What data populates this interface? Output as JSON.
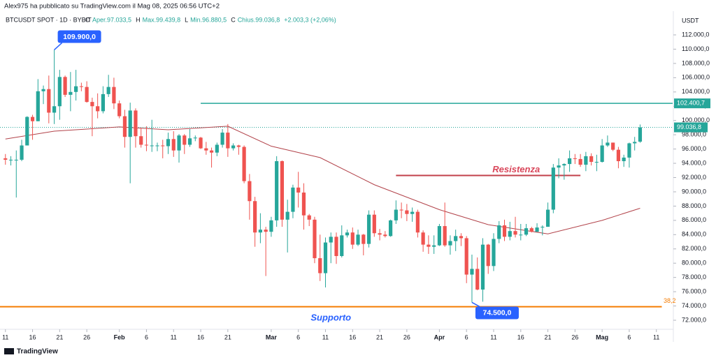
{
  "header": "Alex975 ha pubblicato su TradingView.com il Mag 08, 2025 06:56 UTC+2",
  "footer": "TradingView",
  "chart_data": {
    "type": "candlestick",
    "title": "BTCUSDT SPOT · 1D · BYBIT",
    "legend": [
      "O",
      "Aper.97.033,5",
      "H",
      "Max.99.439,8",
      "L",
      "Min.96.880,5",
      "C",
      "Chius.99.036,8",
      "+2.003,3 (+2,06%)"
    ],
    "y_axis_label": "USDT",
    "up_color": "#26a69a",
    "down_color": "#ef5350",
    "xlim": [
      "2025-01-10",
      "2025-05-14"
    ],
    "ylim": [
      68970,
      115130
    ],
    "yticks": [
      {
        "value": 72000,
        "label": "72.000,0"
      },
      {
        "value": 74000,
        "label": "74.000,0"
      },
      {
        "value": 76000,
        "label": "76.000,0"
      },
      {
        "value": 78000,
        "label": "78.000,0"
      },
      {
        "value": 80000,
        "label": "80.000,0"
      },
      {
        "value": 82000,
        "label": "82.000,0"
      },
      {
        "value": 84000,
        "label": "84.000,0"
      },
      {
        "value": 86000,
        "label": "86.000,0"
      },
      {
        "value": 88000,
        "label": "88.000,0"
      },
      {
        "value": 90000,
        "label": "90.000,0"
      },
      {
        "value": 92000,
        "label": "92.000,0"
      },
      {
        "value": 94000,
        "label": "94.000,0"
      },
      {
        "value": 96000,
        "label": "96.000,0"
      },
      {
        "value": 98000,
        "label": "98.000,0"
      },
      {
        "value": 100000,
        "label": "100.000,0"
      },
      {
        "value": 102000,
        "label": "102.000,0"
      },
      {
        "value": 104000,
        "label": "104.000,0"
      },
      {
        "value": 106000,
        "label": "106.000,0"
      },
      {
        "value": 108000,
        "label": "108.000,0"
      },
      {
        "value": 110000,
        "label": "110.000,0"
      },
      {
        "value": 112000,
        "label": "112.000,0"
      }
    ],
    "xticks": [
      {
        "value": "2025-01-11",
        "label": "11"
      },
      {
        "value": "2025-01-16",
        "label": "16"
      },
      {
        "value": "2025-01-21",
        "label": "21"
      },
      {
        "value": "2025-01-26",
        "label": "26"
      },
      {
        "value": "2025-02-01",
        "label": "Feb"
      },
      {
        "value": "2025-02-06",
        "label": "6"
      },
      {
        "value": "2025-02-11",
        "label": "11"
      },
      {
        "value": "2025-02-16",
        "label": "16"
      },
      {
        "value": "2025-02-21",
        "label": "21"
      },
      {
        "value": "2025-03-01",
        "label": "Mar"
      },
      {
        "value": "2025-03-06",
        "label": "6"
      },
      {
        "value": "2025-03-11",
        "label": "11"
      },
      {
        "value": "2025-03-16",
        "label": "16"
      },
      {
        "value": "2025-03-21",
        "label": "21"
      },
      {
        "value": "2025-03-26",
        "label": "26"
      },
      {
        "value": "2025-04-01",
        "label": "Apr"
      },
      {
        "value": "2025-04-06",
        "label": "6"
      },
      {
        "value": "2025-04-11",
        "label": "11"
      },
      {
        "value": "2025-04-16",
        "label": "16"
      },
      {
        "value": "2025-04-21",
        "label": "21"
      },
      {
        "value": "2025-04-26",
        "label": "26"
      },
      {
        "value": "2025-05-01",
        "label": "Mag"
      },
      {
        "value": "2025-05-06",
        "label": "6"
      },
      {
        "value": "2025-05-11",
        "label": "11"
      }
    ],
    "x": [
      "2025-01-11",
      "2025-01-12",
      "2025-01-13",
      "2025-01-14",
      "2025-01-15",
      "2025-01-16",
      "2025-01-17",
      "2025-01-18",
      "2025-01-19",
      "2025-01-20",
      "2025-01-21",
      "2025-01-22",
      "2025-01-23",
      "2025-01-24",
      "2025-01-25",
      "2025-01-26",
      "2025-01-27",
      "2025-01-28",
      "2025-01-29",
      "2025-01-30",
      "2025-01-31",
      "2025-02-01",
      "2025-02-02",
      "2025-02-03",
      "2025-02-04",
      "2025-02-05",
      "2025-02-06",
      "2025-02-07",
      "2025-02-08",
      "2025-02-09",
      "2025-02-10",
      "2025-02-11",
      "2025-02-12",
      "2025-02-13",
      "2025-02-14",
      "2025-02-15",
      "2025-02-16",
      "2025-02-17",
      "2025-02-18",
      "2025-02-19",
      "2025-02-20",
      "2025-02-21",
      "2025-02-22",
      "2025-02-23",
      "2025-02-24",
      "2025-02-25",
      "2025-02-26",
      "2025-02-27",
      "2025-02-28",
      "2025-03-01",
      "2025-03-02",
      "2025-03-03",
      "2025-03-04",
      "2025-03-05",
      "2025-03-06",
      "2025-03-07",
      "2025-03-08",
      "2025-03-09",
      "2025-03-10",
      "2025-03-11",
      "2025-03-12",
      "2025-03-13",
      "2025-03-14",
      "2025-03-15",
      "2025-03-16",
      "2025-03-17",
      "2025-03-18",
      "2025-03-19",
      "2025-03-20",
      "2025-03-21",
      "2025-03-22",
      "2025-03-23",
      "2025-03-24",
      "2025-03-25",
      "2025-03-26",
      "2025-03-27",
      "2025-03-28",
      "2025-03-29",
      "2025-03-30",
      "2025-03-31",
      "2025-04-01",
      "2025-04-02",
      "2025-04-03",
      "2025-04-04",
      "2025-04-05",
      "2025-04-06",
      "2025-04-07",
      "2025-04-08",
      "2025-04-09",
      "2025-04-10",
      "2025-04-11",
      "2025-04-12",
      "2025-04-13",
      "2025-04-14",
      "2025-04-15",
      "2025-04-16",
      "2025-04-17",
      "2025-04-18",
      "2025-04-19",
      "2025-04-20",
      "2025-04-21",
      "2025-04-22",
      "2025-04-23",
      "2025-04-24",
      "2025-04-25",
      "2025-04-26",
      "2025-04-27",
      "2025-04-28",
      "2025-04-29",
      "2025-04-30",
      "2025-05-01",
      "2025-05-02",
      "2025-05-03",
      "2025-05-04",
      "2025-05-05",
      "2025-05-06",
      "2025-05-07",
      "2025-05-08"
    ],
    "open": [
      94700,
      94500,
      94500,
      94500,
      96500,
      100500,
      99900,
      104100,
      104400,
      101100,
      102000,
      106100,
      103600,
      104000,
      104800,
      104700,
      102600,
      102000,
      101300,
      103700,
      104700,
      102400,
      100600,
      97700,
      101400,
      97800,
      96600,
      96500,
      96500,
      96500,
      96400,
      97400,
      95800,
      97900,
      96600,
      97500,
      97600,
      96100,
      95800,
      95500,
      96600,
      98300,
      96100,
      96500,
      96300,
      91500,
      88700,
      84300,
      84700,
      84400,
      86000,
      94300,
      86100,
      87200,
      90600,
      89900,
      86700,
      86100,
      80700,
      78600,
      82900,
      83700,
      81000,
      83900,
      84300,
      82600,
      84000,
      82700,
      86800,
      84200,
      84000,
      83800,
      86000,
      87500,
      87400,
      86900,
      87200,
      84300,
      82600,
      82300,
      82500,
      85200,
      82500,
      83100,
      83800,
      83500,
      78400,
      79200,
      76300,
      82600,
      79600,
      83400,
      85300,
      83700,
      84500,
      84000,
      84000,
      84900,
      84400,
      85000,
      85100,
      87500,
      93400,
      93700,
      93900,
      94700,
      94600,
      93800,
      95000,
      94200,
      94200,
      96500,
      96900,
      95900,
      94300,
      94800,
      96800,
      97033.5
    ],
    "high": [
      95300,
      95000,
      95800,
      97300,
      100600,
      100800,
      105800,
      104900,
      106300,
      109900,
      107100,
      106300,
      106800,
      107100,
      105300,
      105500,
      103200,
      103800,
      104800,
      106400,
      106000,
      102800,
      101500,
      102500,
      101700,
      99000,
      99200,
      100100,
      96900,
      97300,
      98300,
      98500,
      98100,
      98100,
      98800,
      97900,
      97700,
      97000,
      96200,
      96900,
      98800,
      99500,
      96800,
      96600,
      96500,
      92500,
      89300,
      87000,
      85100,
      86500,
      95000,
      94400,
      88900,
      91000,
      92800,
      91200,
      86900,
      86500,
      84000,
      83600,
      84300,
      84300,
      85300,
      84700,
      85000,
      84700,
      84100,
      87400,
      87400,
      84800,
      84500,
      86100,
      88800,
      88500,
      88300,
      87800,
      87500,
      84600,
      83900,
      83900,
      85500,
      88500,
      83900,
      84700,
      84200,
      83800,
      81200,
      80800,
      83500,
      82700,
      84200,
      85900,
      86100,
      85800,
      86500,
      85500,
      85500,
      85100,
      85600,
      85300,
      88500,
      93900,
      94700,
      94000,
      95800,
      95300,
      95300,
      95600,
      95400,
      95200,
      97400,
      97900,
      96900,
      96300,
      95200,
      96900,
      97700,
      99439.8
    ],
    "low": [
      93800,
      93700,
      89200,
      94300,
      96500,
      97300,
      99900,
      102300,
      99600,
      99500,
      100100,
      103300,
      101300,
      102800,
      104100,
      102500,
      97800,
      100300,
      101000,
      103300,
      101600,
      100300,
      96200,
      91200,
      96200,
      96200,
      95700,
      95600,
      95700,
      94700,
      95300,
      94900,
      94100,
      95300,
      96300,
      97100,
      96000,
      95200,
      93400,
      95000,
      96200,
      94900,
      95800,
      95200,
      91200,
      86100,
      82300,
      82800,
      78200,
      83700,
      85100,
      85100,
      81500,
      86300,
      87800,
      84700,
      85200,
      80000,
      77500,
      76600,
      80000,
      79900,
      80800,
      83600,
      82000,
      82400,
      81100,
      82200,
      83700,
      83200,
      83600,
      83700,
      85500,
      86300,
      85900,
      85800,
      83600,
      81600,
      81300,
      81300,
      82400,
      82300,
      81200,
      81700,
      82400,
      77200,
      74500,
      76200,
      74600,
      78500,
      78900,
      82800,
      83100,
      83200,
      83600,
      83200,
      83800,
      84300,
      84400,
      83900,
      85100,
      87000,
      91900,
      91700,
      92800,
      93900,
      93500,
      92900,
      93700,
      92900,
      94100,
      96300,
      95700,
      93300,
      93500,
      93400,
      95800,
      96880.5
    ],
    "close": [
      94500,
      94500,
      94500,
      96500,
      100500,
      99900,
      104100,
      104400,
      101100,
      102000,
      106100,
      103600,
      104000,
      104800,
      104700,
      102600,
      102000,
      101300,
      103700,
      104700,
      102400,
      100600,
      97700,
      101400,
      97800,
      96600,
      96500,
      96500,
      96500,
      96400,
      97400,
      95800,
      97900,
      96600,
      97500,
      97600,
      96100,
      95800,
      95500,
      96600,
      98300,
      96100,
      96500,
      96300,
      91500,
      88700,
      84300,
      84700,
      84400,
      86000,
      94300,
      86100,
      87200,
      90600,
      89900,
      86700,
      86100,
      80700,
      78600,
      82900,
      83700,
      81000,
      83900,
      84300,
      82600,
      84000,
      82700,
      86800,
      84200,
      84000,
      83800,
      86000,
      87500,
      87400,
      86900,
      87200,
      84300,
      82600,
      82300,
      82500,
      85200,
      82500,
      83100,
      83800,
      83500,
      78400,
      79200,
      76300,
      82600,
      79600,
      83400,
      85300,
      83700,
      84500,
      84000,
      84000,
      84900,
      84400,
      85000,
      85100,
      87500,
      93400,
      93700,
      93900,
      94700,
      94600,
      93800,
      95000,
      94200,
      94200,
      96500,
      96900,
      95900,
      94300,
      94800,
      96800,
      97000,
      99036.8
    ],
    "moving_average": {
      "color": "#b2434a",
      "x": [
        "2025-01-11",
        "2025-01-20",
        "2025-02-01",
        "2025-02-10",
        "2025-02-21",
        "2025-03-01",
        "2025-03-10",
        "2025-03-20",
        "2025-04-01",
        "2025-04-10",
        "2025-04-21",
        "2025-05-01",
        "2025-05-08"
      ],
      "values": [
        97400,
        98500,
        99100,
        98700,
        99200,
        96400,
        94800,
        91000,
        87500,
        85400,
        84100,
        86000,
        87700
      ]
    },
    "last_price": {
      "value": 99036.8,
      "label": "99.036,8",
      "color": "#26a69a"
    },
    "levels": [
      {
        "value": 102400.7,
        "label": "102.400,7",
        "color": "#26a69a",
        "from": "2025-02-16",
        "to": "2025-05-14"
      }
    ],
    "zones": [
      {
        "text": "Resistenza",
        "value": 92300,
        "from": "2025-03-24",
        "to": "2025-04-27",
        "color": "#c2404a",
        "text_color": "#d9465a"
      },
      {
        "text": "Supporto",
        "value": 73900,
        "from": "2025-01-10",
        "to": "2025-05-12",
        "color": "#f57c00",
        "text_color": "#2962ff"
      }
    ],
    "fib_label": "38,2",
    "callouts": [
      {
        "text": "109.900,0",
        "x": "2025-01-20",
        "value": 109900
      },
      {
        "text": "74.500,0",
        "x": "2025-04-07",
        "value": 74500
      }
    ]
  }
}
